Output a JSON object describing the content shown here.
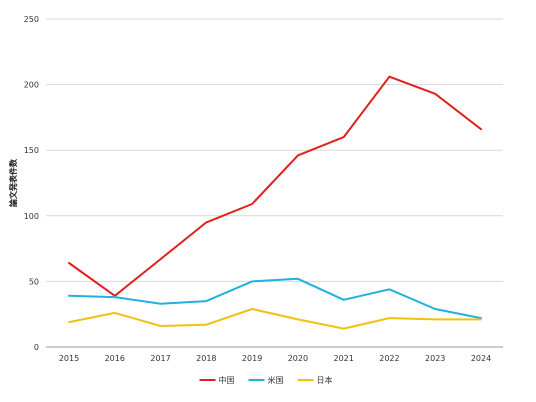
{
  "chart_data": {
    "type": "line",
    "title": "",
    "xlabel": "",
    "ylabel": "論文発表件数",
    "ylim": [
      0,
      250
    ],
    "yticks": [
      0,
      50,
      100,
      150,
      200,
      250
    ],
    "categories": [
      "2015",
      "2016",
      "2017",
      "2018",
      "2019",
      "2020",
      "2021",
      "2022",
      "2023",
      "2024"
    ],
    "grid": true,
    "legend_position": "bottom",
    "series": [
      {
        "name": "中国",
        "color": "#e0211b",
        "values": [
          64,
          39,
          67,
          95,
          109,
          146,
          160,
          206,
          193,
          166
        ]
      },
      {
        "name": "米国",
        "color": "#1fb2e0",
        "values": [
          39,
          38,
          33,
          35,
          50,
          52,
          36,
          44,
          29,
          22
        ]
      },
      {
        "name": "日本",
        "color": "#f2c00f",
        "values": [
          19,
          26,
          16,
          17,
          29,
          21,
          14,
          22,
          21,
          21
        ]
      }
    ]
  }
}
